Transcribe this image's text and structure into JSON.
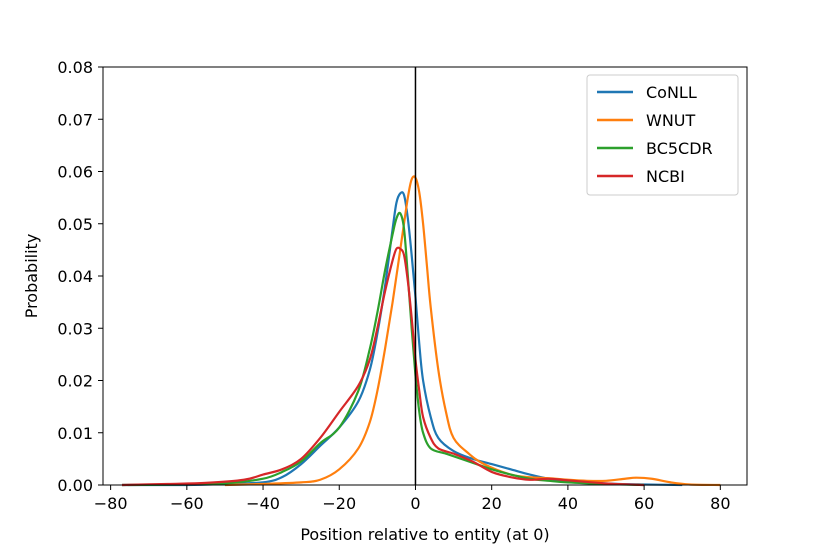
{
  "chart_data": {
    "type": "line",
    "title": "",
    "xlabel": "Position relative to entity (at 0)",
    "ylabel": "Probability",
    "xlim": [
      -82,
      87
    ],
    "ylim": [
      0,
      0.08
    ],
    "xticks": [
      -80,
      -60,
      -40,
      -20,
      0,
      20,
      40,
      60,
      80
    ],
    "xtick_labels": [
      "−80",
      "−60",
      "−40",
      "−20",
      "0",
      "20",
      "40",
      "60",
      "80"
    ],
    "yticks": [
      0,
      0.01,
      0.02,
      0.03,
      0.04,
      0.05,
      0.06,
      0.07,
      0.08
    ],
    "ytick_labels": [
      "0.00",
      "0.01",
      "0.02",
      "0.03",
      "0.04",
      "0.05",
      "0.06",
      "0.07",
      "0.08"
    ],
    "grid": false,
    "legend_position": "top-right",
    "vertical_line_x": 0,
    "series": [
      {
        "name": "CoNLL",
        "color": "#1f77b4",
        "points": [
          [
            -77,
            0
          ],
          [
            -60,
            0
          ],
          [
            -50,
            0.0002
          ],
          [
            -40,
            0.0005
          ],
          [
            -35,
            0.0015
          ],
          [
            -30,
            0.004
          ],
          [
            -25,
            0.0075
          ],
          [
            -20,
            0.011
          ],
          [
            -15,
            0.016
          ],
          [
            -12,
            0.022
          ],
          [
            -10,
            0.029
          ],
          [
            -8,
            0.038
          ],
          [
            -6,
            0.049
          ],
          [
            -5,
            0.054
          ],
          [
            -4,
            0.0558
          ],
          [
            -3,
            0.0555
          ],
          [
            -2,
            0.051
          ],
          [
            -1,
            0.044
          ],
          [
            0,
            0.036
          ],
          [
            1,
            0.027
          ],
          [
            2,
            0.02
          ],
          [
            4,
            0.013
          ],
          [
            6,
            0.009
          ],
          [
            10,
            0.0065
          ],
          [
            15,
            0.005
          ],
          [
            20,
            0.004
          ],
          [
            25,
            0.003
          ],
          [
            30,
            0.002
          ],
          [
            35,
            0.0012
          ],
          [
            40,
            0.0008
          ],
          [
            50,
            0.0003
          ],
          [
            60,
            0.0001
          ],
          [
            70,
            0
          ]
        ]
      },
      {
        "name": "WNUT",
        "color": "#ff7f0e",
        "points": [
          [
            -50,
            0
          ],
          [
            -40,
            0.0002
          ],
          [
            -30,
            0.0005
          ],
          [
            -25,
            0.001
          ],
          [
            -20,
            0.003
          ],
          [
            -15,
            0.007
          ],
          [
            -12,
            0.012
          ],
          [
            -10,
            0.018
          ],
          [
            -8,
            0.026
          ],
          [
            -6,
            0.035
          ],
          [
            -4,
            0.045
          ],
          [
            -2,
            0.055
          ],
          [
            -1,
            0.0585
          ],
          [
            0,
            0.0588
          ],
          [
            1,
            0.056
          ],
          [
            2,
            0.05
          ],
          [
            3,
            0.042
          ],
          [
            4,
            0.034
          ],
          [
            6,
            0.022
          ],
          [
            8,
            0.014
          ],
          [
            10,
            0.009
          ],
          [
            14,
            0.006
          ],
          [
            18,
            0.004
          ],
          [
            25,
            0.002
          ],
          [
            30,
            0.0015
          ],
          [
            35,
            0.0013
          ],
          [
            40,
            0.001
          ],
          [
            45,
            0.0008
          ],
          [
            50,
            0.0008
          ],
          [
            55,
            0.0012
          ],
          [
            58,
            0.0014
          ],
          [
            62,
            0.0012
          ],
          [
            67,
            0.0005
          ],
          [
            72,
            0.0001
          ],
          [
            80,
            0
          ]
        ]
      },
      {
        "name": "BC5CDR",
        "color": "#2ca02c",
        "points": [
          [
            -77,
            0
          ],
          [
            -60,
            0.0001
          ],
          [
            -50,
            0.0003
          ],
          [
            -40,
            0.0012
          ],
          [
            -35,
            0.0025
          ],
          [
            -30,
            0.0045
          ],
          [
            -25,
            0.008
          ],
          [
            -20,
            0.011
          ],
          [
            -15,
            0.018
          ],
          [
            -12,
            0.026
          ],
          [
            -10,
            0.033
          ],
          [
            -8,
            0.041
          ],
          [
            -6,
            0.048
          ],
          [
            -5,
            0.051
          ],
          [
            -4,
            0.052
          ],
          [
            -3,
            0.049
          ],
          [
            -2,
            0.04
          ],
          [
            -1,
            0.03
          ],
          [
            0,
            0.021
          ],
          [
            1,
            0.014
          ],
          [
            2,
            0.01
          ],
          [
            4,
            0.007
          ],
          [
            8,
            0.006
          ],
          [
            12,
            0.005
          ],
          [
            16,
            0.004
          ],
          [
            20,
            0.003
          ],
          [
            25,
            0.002
          ],
          [
            30,
            0.0012
          ],
          [
            35,
            0.0008
          ],
          [
            40,
            0.0005
          ],
          [
            50,
            0.0002
          ],
          [
            60,
            0
          ]
        ]
      },
      {
        "name": "NCBI",
        "color": "#d62728",
        "points": [
          [
            -77,
            0
          ],
          [
            -65,
            0.0002
          ],
          [
            -55,
            0.0004
          ],
          [
            -45,
            0.001
          ],
          [
            -40,
            0.002
          ],
          [
            -35,
            0.003
          ],
          [
            -30,
            0.005
          ],
          [
            -25,
            0.009
          ],
          [
            -20,
            0.014
          ],
          [
            -15,
            0.019
          ],
          [
            -12,
            0.024
          ],
          [
            -10,
            0.03
          ],
          [
            -8,
            0.037
          ],
          [
            -6,
            0.043
          ],
          [
            -5,
            0.0452
          ],
          [
            -4,
            0.0452
          ],
          [
            -3,
            0.044
          ],
          [
            -2,
            0.039
          ],
          [
            -1,
            0.032
          ],
          [
            0,
            0.024
          ],
          [
            1,
            0.018
          ],
          [
            2,
            0.013
          ],
          [
            4,
            0.009
          ],
          [
            6,
            0.007
          ],
          [
            10,
            0.006
          ],
          [
            15,
            0.0045
          ],
          [
            20,
            0.0025
          ],
          [
            25,
            0.0015
          ],
          [
            30,
            0.001
          ],
          [
            35,
            0.0012
          ],
          [
            40,
            0.0009
          ],
          [
            50,
            0.0003
          ],
          [
            60,
            0
          ]
        ]
      }
    ]
  }
}
